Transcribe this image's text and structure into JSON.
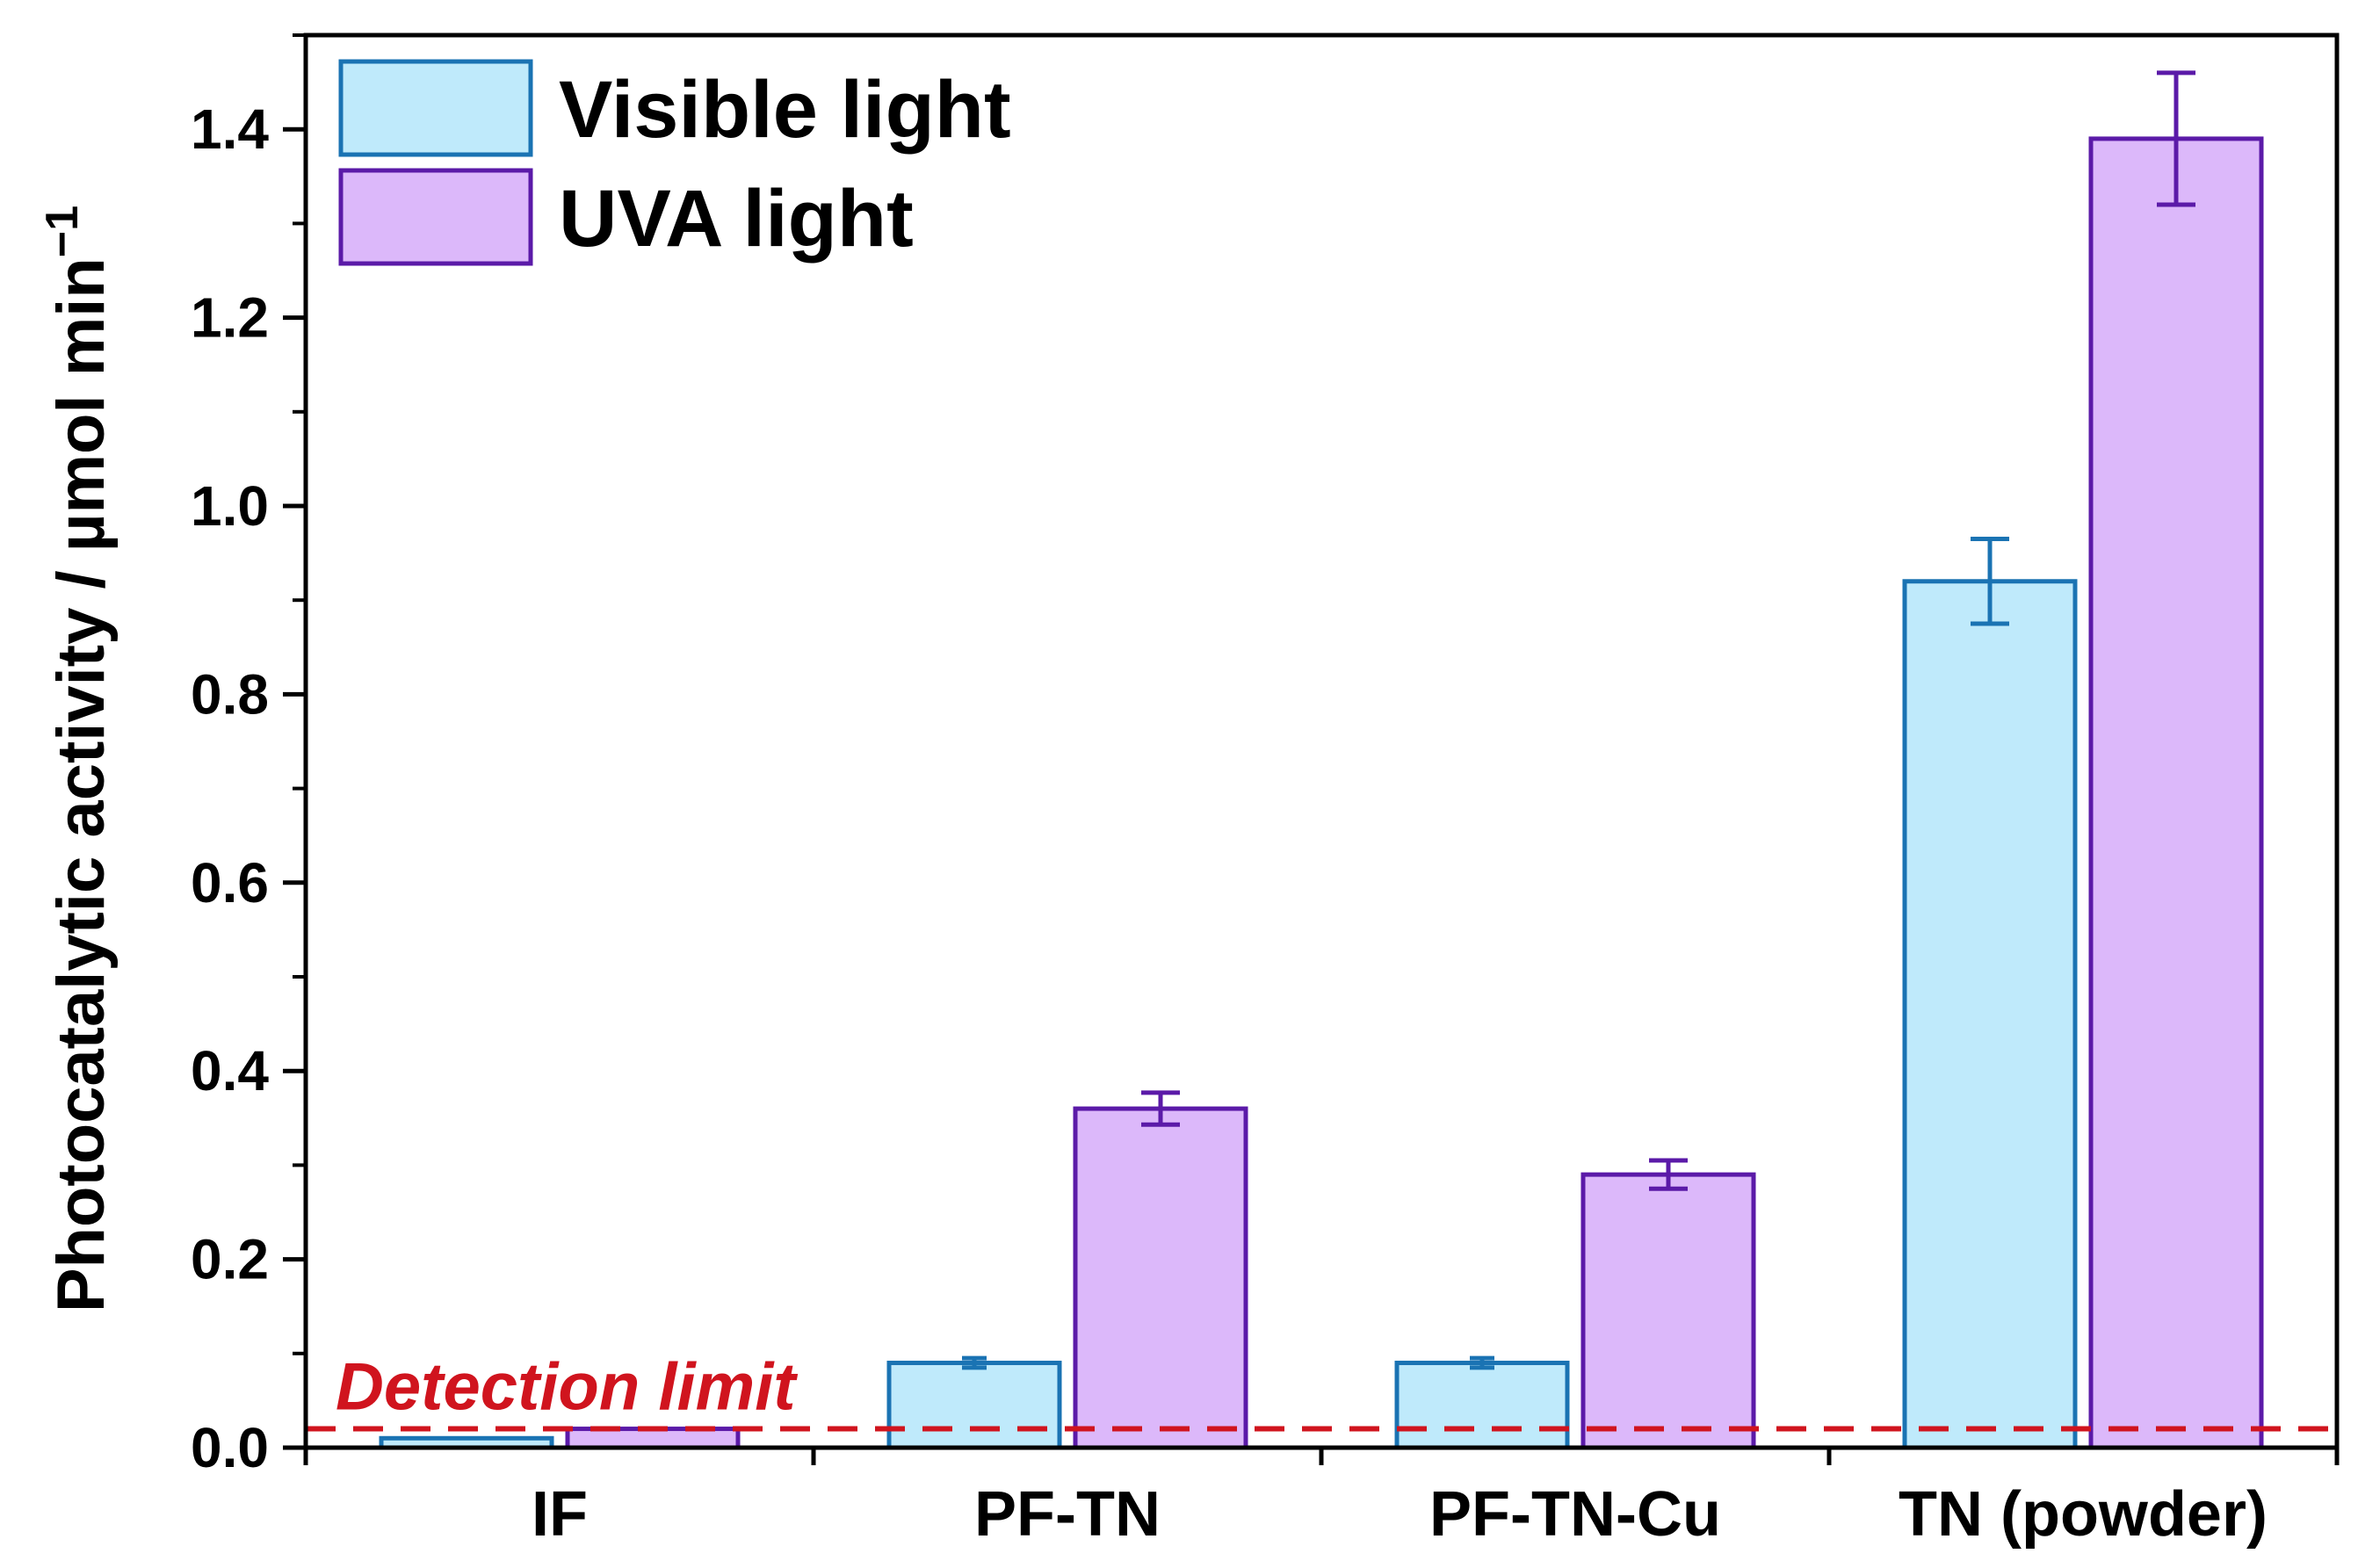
{
  "chart_data": {
    "type": "bar",
    "title": "",
    "xlabel": "",
    "ylabel": "Photocatalytic activity / µmol min",
    "ylabel_superscript": "−1",
    "categories": [
      "IF",
      "PF-TN",
      "PF-TN-Cu",
      "TN (powder)"
    ],
    "series": [
      {
        "name": "Visible light",
        "values": [
          0.01,
          0.09,
          0.09,
          0.92
        ],
        "errors": [
          0.0,
          0.005,
          0.005,
          0.045
        ],
        "fill": "#bfeafb",
        "stroke": "#1a73b3"
      },
      {
        "name": "UVA light",
        "values": [
          0.02,
          0.36,
          0.29,
          1.39
        ],
        "errors": [
          0.0,
          0.017,
          0.015,
          0.07
        ],
        "fill": "#dcb8fa",
        "stroke": "#5b1aa8"
      }
    ],
    "ylim": [
      0,
      1.5
    ],
    "yticks": [
      0.0,
      0.2,
      0.4,
      0.6,
      0.8,
      1.0,
      1.2,
      1.4
    ],
    "ytick_labels": [
      "0.0",
      "0.2",
      "0.4",
      "0.6",
      "0.8",
      "1.0",
      "1.2",
      "1.4"
    ],
    "grid": false,
    "legend_position": "top-left",
    "annotations": [
      {
        "text": "Detection limit",
        "y": 0.02,
        "style": "dashed",
        "color": "#d0141e"
      }
    ]
  }
}
